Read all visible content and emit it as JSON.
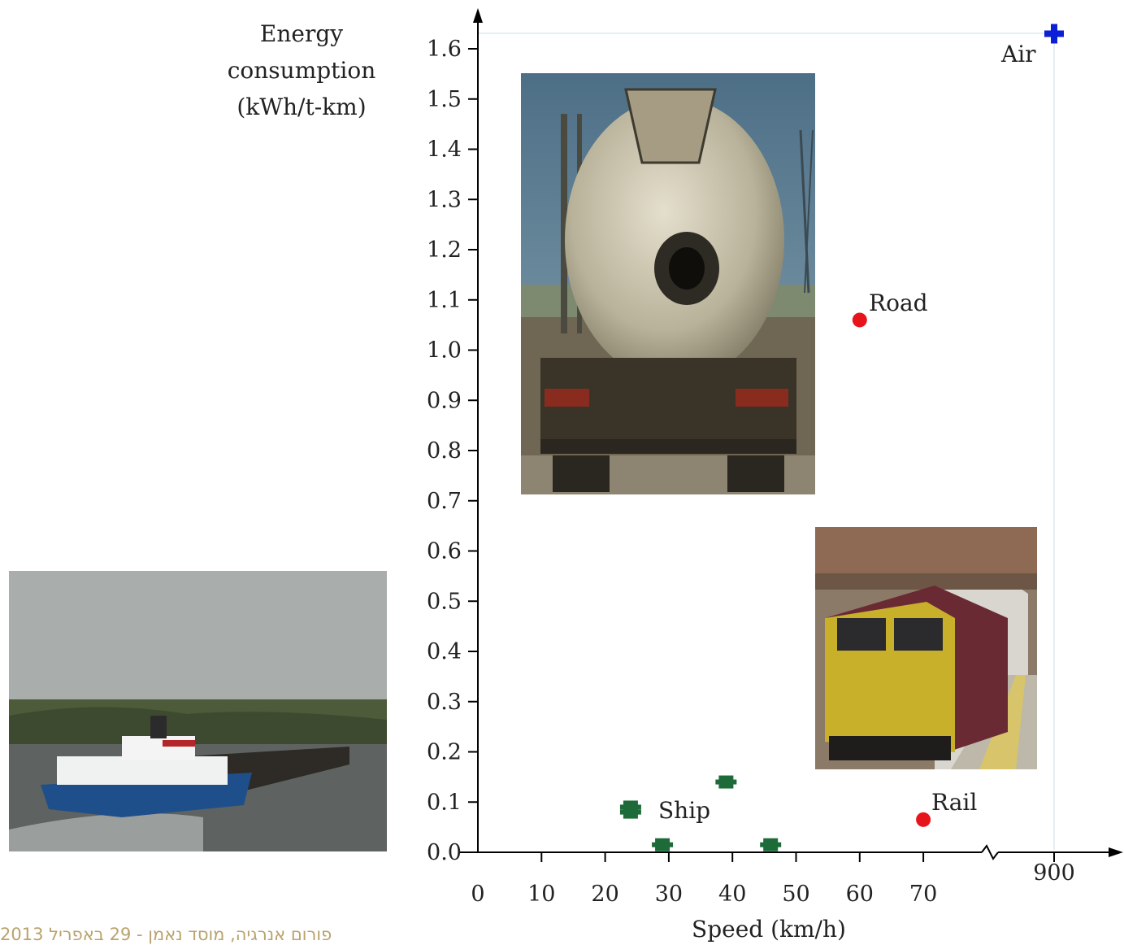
{
  "chart_data": {
    "type": "scatter",
    "title": "",
    "ylabel": [
      "Energy",
      "consumption",
      "(kWh/t-km)"
    ],
    "xlabel": "Speed (km/h)",
    "ylim": [
      0.0,
      1.6
    ],
    "yticks": [
      "0.0",
      "0.1",
      "0.2",
      "0.3",
      "0.4",
      "0.5",
      "0.6",
      "0.7",
      "0.8",
      "0.9",
      "1.0",
      "1.1",
      "1.2",
      "1.3",
      "1.4",
      "1.5",
      "1.6"
    ],
    "xticks": [
      "0",
      "10",
      "20",
      "30",
      "40",
      "50",
      "60",
      "70"
    ],
    "x_break_tick": "900",
    "series": [
      {
        "name": "Ship",
        "color": "#1e6b3a",
        "marker": "square",
        "points": [
          {
            "x": 24,
            "y": 0.09
          },
          {
            "x": 24,
            "y": 0.08
          },
          {
            "x": 29,
            "y": 0.015
          },
          {
            "x": 39,
            "y": 0.14
          },
          {
            "x": 46,
            "y": 0.015
          }
        ]
      },
      {
        "name": "Road",
        "color": "#e8141c",
        "marker": "circle",
        "points": [
          {
            "x": 60,
            "y": 1.06
          }
        ]
      },
      {
        "name": "Rail",
        "color": "#e8141c",
        "marker": "circle",
        "points": [
          {
            "x": 70,
            "y": 0.065
          }
        ]
      },
      {
        "name": "Air",
        "color": "#0a1fd6",
        "marker": "cross",
        "points": [
          {
            "x": 900,
            "y": 1.63
          }
        ]
      }
    ],
    "grid": false,
    "photos": [
      "truck-photo",
      "train-photo",
      "ship-photo"
    ]
  },
  "footer": "פורום אנרגיה, מוסד נאמן - 29 באפריל 2013"
}
